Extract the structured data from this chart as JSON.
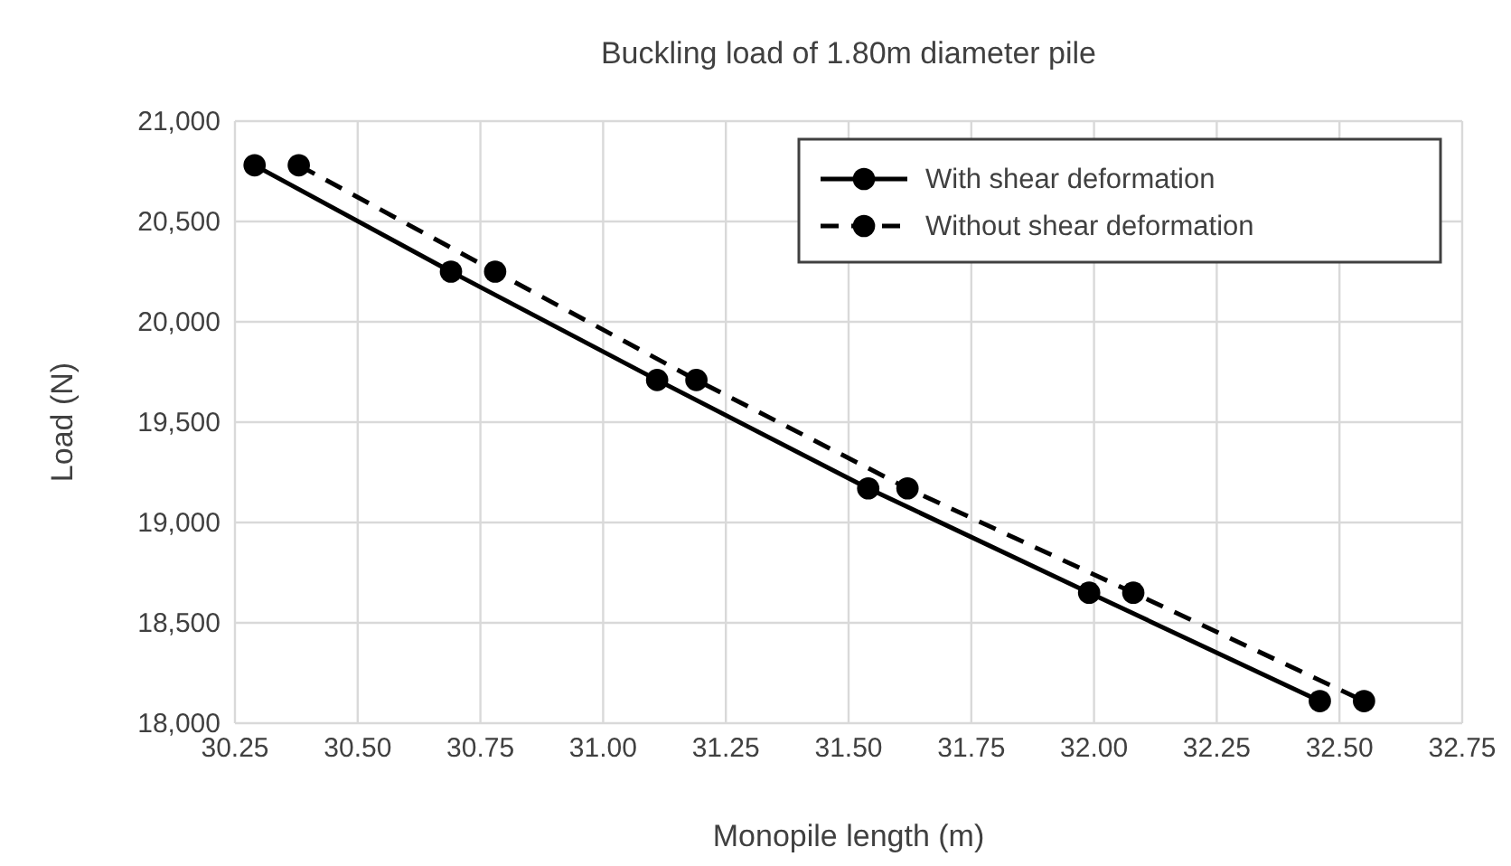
{
  "chart_data": {
    "type": "line",
    "title": "Buckling load of 1.80m diameter pile",
    "xlabel": "Monopile length (m)",
    "ylabel": "Load (N)",
    "xlim": [
      30.25,
      32.75
    ],
    "xticks": [
      {
        "value": 30.25,
        "label": "30.25"
      },
      {
        "value": 30.5,
        "label": "30.50"
      },
      {
        "value": 30.75,
        "label": "30.75"
      },
      {
        "value": 31,
        "label": "31.00"
      },
      {
        "value": 31.25,
        "label": "31.25"
      },
      {
        "value": 31.5,
        "label": "31.50"
      },
      {
        "value": 31.75,
        "label": "31.75"
      },
      {
        "value": 32,
        "label": "32.00"
      },
      {
        "value": 32.25,
        "label": "32.25"
      },
      {
        "value": 32.5,
        "label": "32.50"
      },
      {
        "value": 32.75,
        "label": "32.75"
      }
    ],
    "ylim": [
      18000,
      21000
    ],
    "yticks": [
      {
        "value": 18000,
        "label": "18,000"
      },
      {
        "value": 18500,
        "label": "18,500"
      },
      {
        "value": 19000,
        "label": "19,000"
      },
      {
        "value": 19500,
        "label": "19,500"
      },
      {
        "value": 20000,
        "label": "20,000"
      },
      {
        "value": 20500,
        "label": "20,500"
      },
      {
        "value": 21000,
        "label": "21,000"
      }
    ],
    "grid": true,
    "legend": "top right",
    "marker": "circle",
    "series": [
      {
        "name": "With shear deformation",
        "color": "#000000",
        "line_style": "solid",
        "x": [
          30.29,
          30.69,
          31.11,
          31.54,
          31.99,
          32.46
        ],
        "values": [
          20780,
          20250,
          19710,
          19170,
          18650,
          18110
        ]
      },
      {
        "name": "Without shear deformation",
        "color": "#000000",
        "line_style": "dashed",
        "x": [
          30.38,
          30.78,
          31.19,
          31.62,
          32.08,
          32.55
        ],
        "values": [
          20780,
          20250,
          19710,
          19170,
          18650,
          18110
        ]
      }
    ]
  }
}
